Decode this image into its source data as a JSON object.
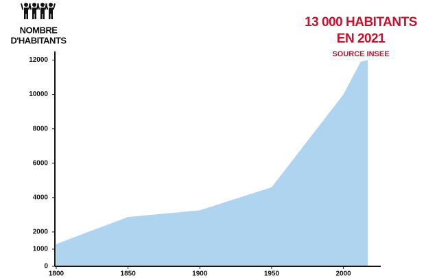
{
  "chart_data": {
    "type": "area",
    "y_label": [
      "NOMBRE",
      "D'HABITANTS"
    ],
    "annotation": [
      "13 000 HABITANTS",
      "EN 2021"
    ],
    "source": "SOURCE INSEE",
    "x": [
      1800,
      1850,
      1900,
      1950,
      2000,
      2012,
      2017
    ],
    "values": [
      1300,
      2870,
      3260,
      4600,
      10000,
      11900,
      12000
    ],
    "color": "#afd4ef",
    "xlim": [
      1800,
      2026
    ],
    "xticks": [
      1800,
      1850,
      1900,
      1950,
      2000
    ],
    "ylim": [
      0,
      12500
    ],
    "yticks": [
      0,
      1000,
      2000,
      4000,
      6000,
      8000,
      10000,
      12000
    ]
  }
}
